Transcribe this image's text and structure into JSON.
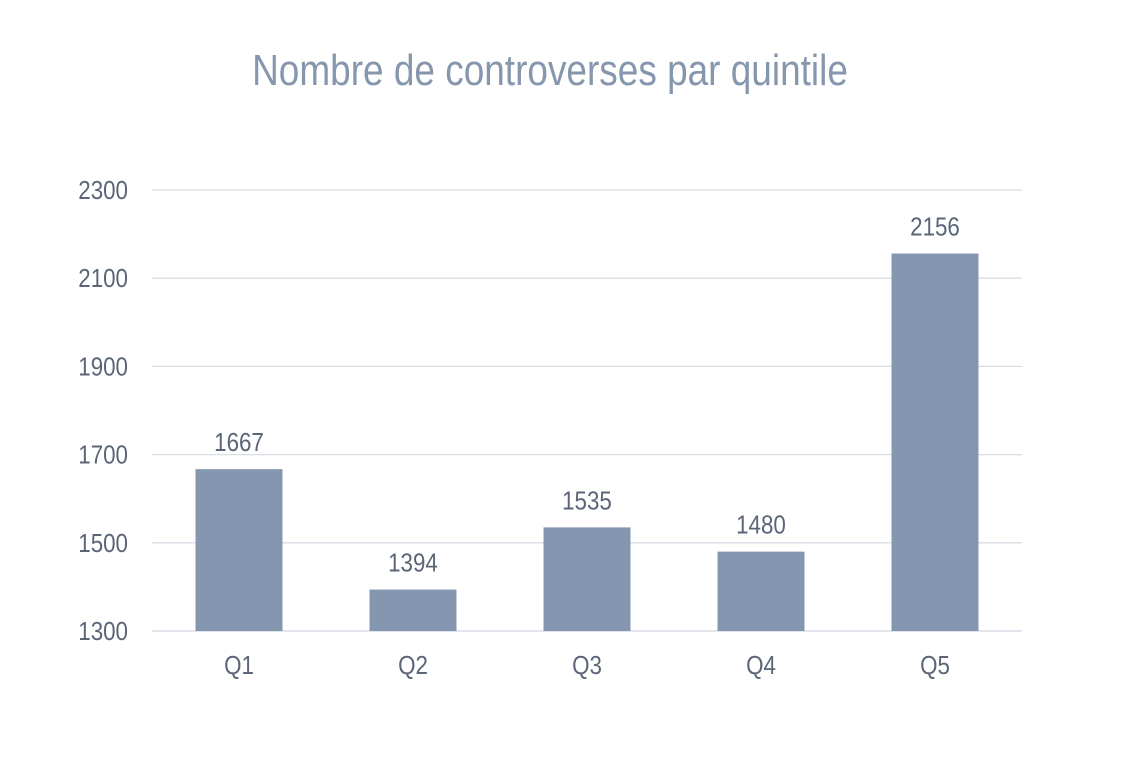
{
  "chart_data": {
    "type": "bar",
    "title": "Nombre de controverses par quintile",
    "categories": [
      "Q1",
      "Q2",
      "Q3",
      "Q4",
      "Q5"
    ],
    "values": [
      1667,
      1394,
      1535,
      1480,
      2156
    ],
    "ylim": [
      1300,
      2300
    ],
    "yticks": [
      1300,
      1500,
      1700,
      1900,
      2100,
      2300
    ],
    "grid": true,
    "legend": "none",
    "bar_color": "#8597b0",
    "grid_color": "#d9dde6",
    "text_color": "#5b6577",
    "title_color": "#8596ad"
  }
}
